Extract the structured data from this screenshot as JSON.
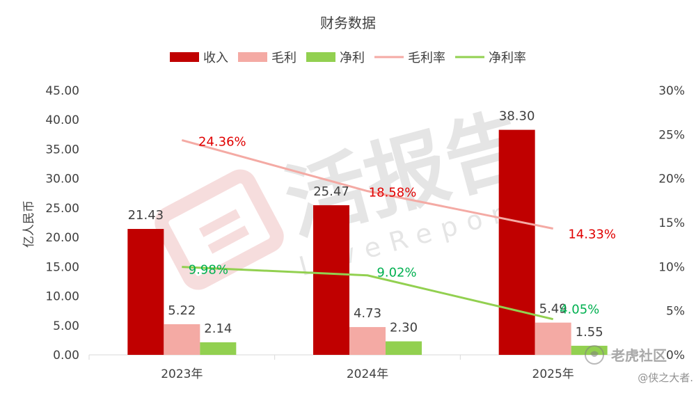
{
  "chart_data": {
    "type": "bar",
    "title": "财务数据",
    "categories": [
      "2023年",
      "2024年",
      "2025年"
    ],
    "ylabel": "亿人民币",
    "ylim": [
      0,
      45
    ],
    "y_ticks": [
      "0.00",
      "5.00",
      "10.00",
      "15.00",
      "20.00",
      "25.00",
      "30.00",
      "35.00",
      "40.00",
      "45.00"
    ],
    "y2lim": [
      0,
      30
    ],
    "y2_ticks": [
      "0%",
      "5%",
      "10%",
      "15%",
      "20%",
      "25%",
      "30%"
    ],
    "legend_position": "top",
    "grid": false,
    "series": [
      {
        "name": "收入",
        "type": "bar",
        "axis": "left",
        "color": "#c00000",
        "values": [
          21.43,
          25.47,
          38.3
        ],
        "labels": [
          "21.43",
          "25.47",
          "38.30"
        ],
        "label_color": "#404040"
      },
      {
        "name": "毛利",
        "type": "bar",
        "axis": "left",
        "color": "#f4aaa4",
        "values": [
          5.22,
          4.73,
          5.49
        ],
        "labels": [
          "5.22",
          "4.73",
          "5.49"
        ],
        "label_color": "#404040"
      },
      {
        "name": "净利",
        "type": "bar",
        "axis": "left",
        "color": "#92d050",
        "values": [
          2.14,
          2.3,
          1.55
        ],
        "labels": [
          "2.14",
          "2.30",
          "1.55"
        ],
        "label_color": "#404040"
      },
      {
        "name": "毛利率",
        "type": "line",
        "axis": "right",
        "color": "#f4aaa4",
        "values": [
          24.36,
          18.58,
          14.33
        ],
        "labels": [
          "24.36%",
          "18.58%",
          "14.33%"
        ],
        "label_color": "#e00000"
      },
      {
        "name": "净利率",
        "type": "line",
        "axis": "right",
        "color": "#92d050",
        "values": [
          9.98,
          9.02,
          4.05
        ],
        "labels": [
          "9.98%",
          "9.02%",
          "4.05%"
        ],
        "label_color": "#00b050"
      }
    ]
  },
  "watermark": {
    "text": "活报告",
    "subtext": "LiveReport"
  },
  "footer": {
    "brand": "老虎社区",
    "author": "@侠之大者."
  }
}
